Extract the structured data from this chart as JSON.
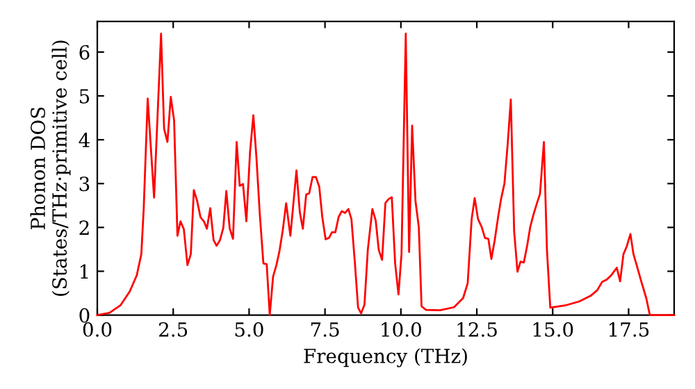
{
  "chart_data": {
    "type": "line",
    "xlabel": "Frequency (THz)",
    "ylabel": "Phonon DOS\n(States/THz·primitive cell)",
    "xlim": [
      0,
      19
    ],
    "ylim": [
      0,
      6.7
    ],
    "xticks": [
      {
        "value": 0,
        "label": "0.0"
      },
      {
        "value": 2.5,
        "label": "2.5"
      },
      {
        "value": 5,
        "label": "5.0"
      },
      {
        "value": 7.5,
        "label": "7.5"
      },
      {
        "value": 10,
        "label": "10.0"
      },
      {
        "value": 12.5,
        "label": "12.5"
      },
      {
        "value": 15,
        "label": "15.0"
      },
      {
        "value": 17.5,
        "label": "17.5"
      }
    ],
    "yticks": [
      0,
      1,
      2,
      3,
      4,
      5,
      6
    ],
    "grid": false,
    "marker": "none",
    "line_style": "solid",
    "series": [
      {
        "color": "#ff0000",
        "x": [
          0.0,
          0.4,
          0.76,
          1.07,
          1.3,
          1.45,
          1.53,
          1.66,
          1.87,
          2.1,
          2.2,
          2.31,
          2.42,
          2.53,
          2.64,
          2.74,
          2.85,
          2.97,
          3.08,
          3.18,
          3.29,
          3.4,
          3.51,
          3.61,
          3.72,
          3.83,
          3.93,
          4.04,
          4.15,
          4.25,
          4.36,
          4.47,
          4.59,
          4.69,
          4.8,
          4.91,
          5.03,
          5.14,
          5.24,
          5.35,
          5.47,
          5.58,
          5.68,
          5.79,
          5.9,
          6.0,
          6.11,
          6.22,
          6.36,
          6.56,
          6.67,
          6.77,
          6.88,
          6.98,
          7.09,
          7.2,
          7.31,
          7.41,
          7.52,
          7.63,
          7.73,
          7.84,
          7.95,
          8.05,
          8.16,
          8.27,
          8.37,
          8.48,
          8.59,
          8.69,
          8.8,
          8.91,
          9.06,
          9.17,
          9.27,
          9.38,
          9.49,
          9.6,
          9.7,
          9.81,
          9.92,
          10.02,
          10.16,
          10.27,
          10.37,
          10.48,
          10.59,
          10.68,
          10.83,
          11.29,
          11.75,
          12.05,
          12.2,
          12.33,
          12.43,
          12.54,
          12.66,
          12.77,
          12.88,
          12.98,
          13.09,
          13.2,
          13.3,
          13.41,
          13.52,
          13.62,
          13.73,
          13.84,
          13.94,
          14.05,
          14.16,
          14.26,
          14.37,
          14.48,
          14.58,
          14.71,
          14.81,
          14.92,
          15.41,
          15.87,
          16.25,
          16.47,
          16.63,
          16.78,
          16.93,
          17.11,
          17.22,
          17.33,
          17.43,
          17.56,
          17.66,
          17.77,
          17.92,
          18.08,
          18.2,
          19.0
        ],
        "values": [
          0.0,
          0.05,
          0.22,
          0.54,
          0.91,
          1.39,
          2.45,
          4.94,
          2.68,
          6.42,
          4.25,
          3.95,
          4.98,
          4.44,
          1.81,
          2.14,
          1.96,
          1.14,
          1.39,
          2.85,
          2.6,
          2.23,
          2.14,
          1.97,
          2.44,
          1.71,
          1.58,
          1.71,
          1.99,
          2.83,
          1.98,
          1.74,
          3.95,
          2.95,
          2.99,
          2.14,
          3.71,
          4.56,
          3.61,
          2.33,
          1.18,
          1.16,
          0.0,
          0.88,
          1.14,
          1.46,
          1.94,
          2.55,
          1.81,
          3.3,
          2.35,
          1.97,
          2.75,
          2.78,
          3.15,
          3.15,
          2.93,
          2.24,
          1.73,
          1.76,
          1.89,
          1.89,
          2.24,
          2.37,
          2.33,
          2.42,
          2.19,
          1.23,
          0.17,
          0.04,
          0.24,
          1.49,
          2.42,
          2.16,
          1.49,
          1.26,
          2.56,
          2.65,
          2.69,
          1.18,
          0.47,
          1.39,
          6.42,
          1.44,
          4.32,
          2.6,
          2.01,
          0.2,
          0.12,
          0.11,
          0.18,
          0.39,
          0.73,
          2.19,
          2.67,
          2.19,
          2.01,
          1.76,
          1.74,
          1.28,
          1.71,
          2.23,
          2.65,
          3.0,
          3.93,
          4.92,
          1.91,
          0.99,
          1.22,
          1.2,
          1.59,
          2.01,
          2.3,
          2.55,
          2.76,
          3.95,
          1.49,
          0.17,
          0.22,
          0.31,
          0.44,
          0.57,
          0.76,
          0.81,
          0.91,
          1.08,
          0.77,
          1.39,
          1.55,
          1.85,
          1.39,
          1.13,
          0.76,
          0.39,
          0.0,
          0.0
        ]
      }
    ]
  }
}
